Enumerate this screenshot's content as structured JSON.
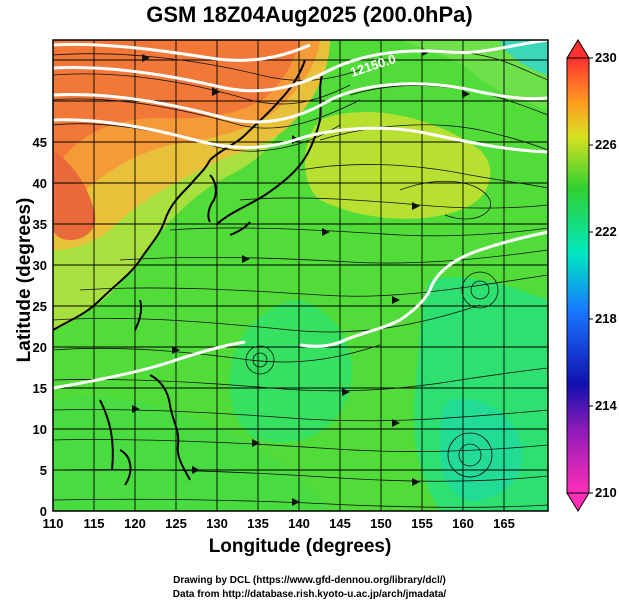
{
  "title": "GSM 18Z04Aug2025 (200.0hPa)",
  "x_axis": {
    "label": "Longitude (degrees)",
    "ticks": [
      "110",
      "115",
      "120",
      "125",
      "130",
      "135",
      "140",
      "145",
      "150",
      "155",
      "160",
      "165"
    ]
  },
  "y_axis": {
    "label": "Latitude  (degrees)",
    "ticks": [
      "0",
      "5",
      "10",
      "15",
      "20",
      "25",
      "30",
      "35",
      "40",
      "45"
    ]
  },
  "colorbar": {
    "ticks": [
      "230",
      "226",
      "222",
      "218",
      "214",
      "210"
    ]
  },
  "contour_labels": [
    "12150.0"
  ],
  "credits": {
    "line1": "Drawing by DCL (https://www.gfd-dennou.org/library/dcl/)",
    "line2": "Data from http://database.rish.kyoto-u.ac.jp/arch/jmadata/"
  }
}
